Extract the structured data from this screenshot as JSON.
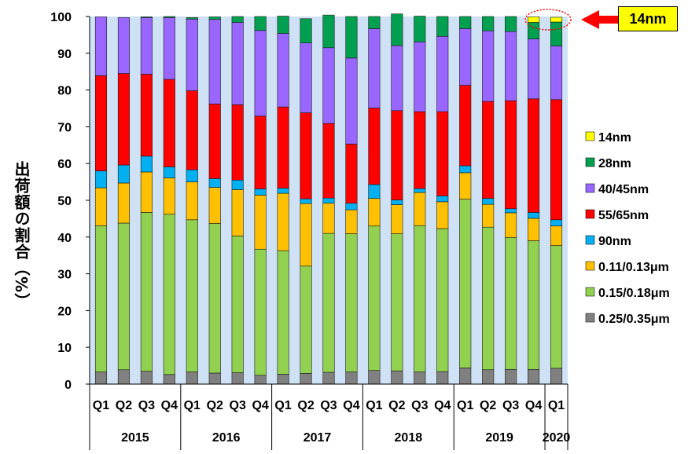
{
  "chart_data": {
    "type": "bar",
    "stacked": true,
    "ylabel": "出荷額の割合（%）",
    "ylim": [
      0,
      100
    ],
    "yticks": [
      0,
      10,
      20,
      30,
      40,
      50,
      60,
      70,
      80,
      90,
      100
    ],
    "categories": [
      "Q1",
      "Q2",
      "Q3",
      "Q4",
      "Q1",
      "Q2",
      "Q3",
      "Q4",
      "Q1",
      "Q2",
      "Q3",
      "Q4",
      "Q1",
      "Q2",
      "Q3",
      "Q4",
      "Q1",
      "Q2",
      "Q3",
      "Q4",
      "Q1"
    ],
    "years": [
      {
        "label": "2015",
        "count": 4
      },
      {
        "label": "2016",
        "count": 4
      },
      {
        "label": "2017",
        "count": 4
      },
      {
        "label": "2018",
        "count": 4
      },
      {
        "label": "2019",
        "count": 4
      },
      {
        "label": "2020",
        "count": 1
      }
    ],
    "callout": "14nm",
    "plot_background": "#cfe2f5",
    "legend_position": "right",
    "series": [
      {
        "name": "0.25/0.35μm",
        "color": "#808080",
        "values": [
          3.3,
          3.9,
          3.5,
          2.6,
          3.3,
          3.0,
          3.1,
          2.4,
          2.7,
          2.9,
          3.2,
          3.3,
          3.7,
          3.6,
          3.3,
          3.4,
          4.4,
          3.9,
          4.0,
          4.0,
          4.3
        ]
      },
      {
        "name": "0.15/0.18μm",
        "color": "#92d050",
        "values": [
          39.8,
          39.9,
          43.2,
          43.6,
          41.4,
          40.7,
          37.2,
          34.3,
          33.6,
          29.2,
          37.8,
          37.6,
          39.3,
          37.3,
          39.8,
          38.9,
          45.9,
          38.8,
          35.9,
          35.0,
          33.4
        ]
      },
      {
        "name": "0.11/0.13μm",
        "color": "#ffc000",
        "values": [
          10.3,
          10.9,
          11.0,
          9.9,
          10.3,
          9.8,
          12.6,
          14.7,
          15.6,
          17.0,
          8.2,
          6.5,
          7.5,
          7.9,
          9.0,
          7.3,
          7.2,
          6.2,
          6.7,
          6.1,
          5.3
        ]
      },
      {
        "name": "90nm",
        "color": "#00b0f0",
        "values": [
          4.6,
          4.9,
          4.3,
          3.0,
          3.3,
          2.4,
          2.6,
          1.7,
          1.4,
          1.3,
          1.4,
          1.8,
          3.8,
          1.3,
          1.1,
          1.6,
          1.9,
          1.6,
          1.1,
          1.6,
          1.7
        ]
      },
      {
        "name": "55/65nm",
        "color": "#ff0000",
        "values": [
          25.9,
          24.9,
          22.3,
          23.8,
          21.5,
          20.3,
          20.5,
          19.8,
          22.1,
          23.4,
          20.3,
          16.1,
          20.8,
          24.3,
          20.9,
          22.9,
          21.9,
          26.4,
          29.4,
          30.9,
          32.7
        ]
      },
      {
        "name": "40/45nm",
        "color": "#9966ff",
        "values": [
          16.0,
          15.2,
          15.4,
          16.8,
          19.5,
          23.0,
          22.4,
          23.3,
          20.0,
          19.0,
          20.6,
          23.4,
          21.6,
          17.7,
          19.0,
          20.5,
          15.4,
          19.2,
          18.8,
          16.3,
          14.6
        ]
      },
      {
        "name": "28nm",
        "color": "#00a050",
        "values": [
          0.0,
          0.0,
          0.2,
          0.3,
          0.4,
          0.7,
          1.6,
          3.8,
          4.7,
          6.6,
          8.9,
          11.3,
          3.3,
          8.6,
          7.0,
          5.4,
          3.3,
          3.9,
          4.1,
          4.5,
          6.5
        ]
      },
      {
        "name": "14nm",
        "color": "#ffff00",
        "values": [
          0,
          0,
          0,
          0,
          0,
          0,
          0,
          0,
          0,
          0,
          0,
          0,
          0,
          0,
          0,
          0,
          0,
          0,
          0,
          1.5,
          1.3
        ]
      }
    ]
  }
}
